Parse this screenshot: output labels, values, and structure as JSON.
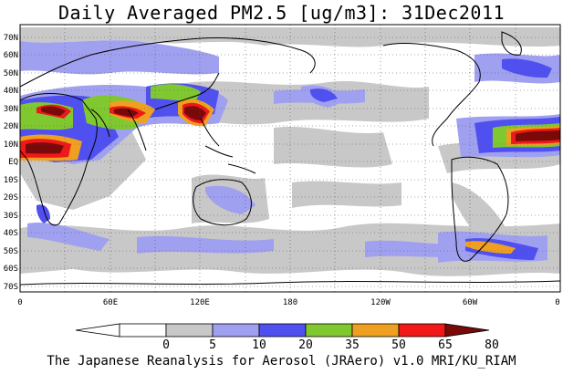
{
  "title": "Daily Averaged PM2.5 [ug/m3]: 31Dec2011",
  "credit": "The Japanese Reanalysis for Aerosol (JRAero) v1.0 MRI/KU_RIAM",
  "lat_labels": [
    "70N",
    "60N",
    "50N",
    "40N",
    "30N",
    "20N",
    "10N",
    "EQ",
    "10S",
    "20S",
    "30S",
    "40S",
    "50S",
    "60S",
    "70S"
  ],
  "lon_labels": [
    "0",
    "60E",
    "120E",
    "180",
    "120W",
    "60W",
    "0"
  ],
  "colorbar": {
    "ticks": [
      "0",
      "5",
      "10",
      "20",
      "35",
      "50",
      "65",
      "80"
    ],
    "colors": [
      "#ffffff",
      "#c8c8c8",
      "#a0a0f0",
      "#5050f0",
      "#80c830",
      "#f0a020",
      "#f01818",
      "#7a0a0a"
    ]
  },
  "chart_data": {
    "type": "heatmap",
    "title": "Daily Averaged PM2.5 [ug/m3]: 31Dec2011",
    "xlim": [
      0,
      360
    ],
    "ylim": [
      -75,
      75
    ],
    "x_ticks": [
      "0",
      "60E",
      "120E",
      "180",
      "120W",
      "60W",
      "0"
    ],
    "y_ticks": [
      "70N",
      "60N",
      "50N",
      "40N",
      "30N",
      "20N",
      "10N",
      "EQ",
      "10S",
      "20S",
      "30S",
      "40S",
      "50S",
      "60S",
      "70S"
    ],
    "levels": [
      0,
      5,
      10,
      20,
      35,
      50,
      65,
      80
    ],
    "level_colors": [
      "#ffffff",
      "#c8c8c8",
      "#a0a0f0",
      "#5050f0",
      "#80c830",
      "#f0a020",
      "#f01818",
      "#7a0a0a"
    ],
    "grid": true
  }
}
